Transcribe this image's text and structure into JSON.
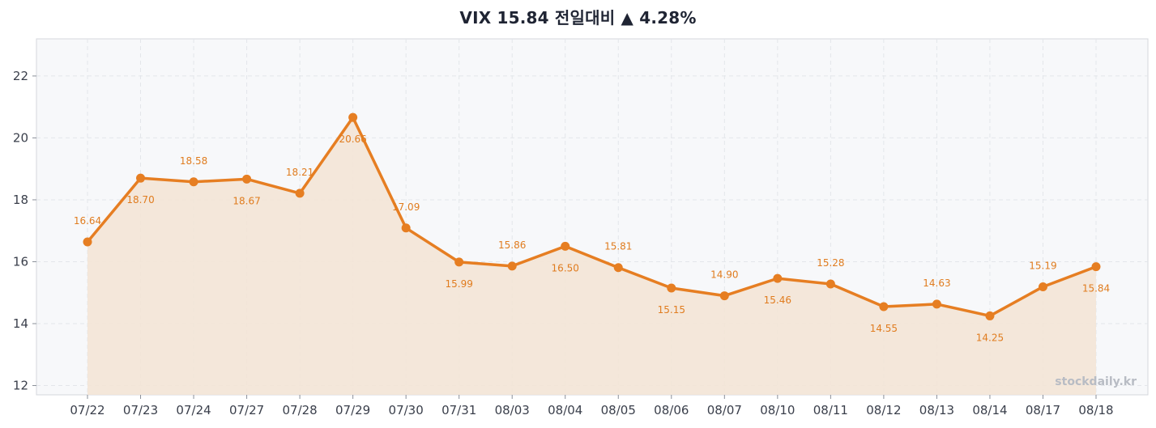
{
  "chart_data": {
    "type": "line",
    "title": "VIX  15.84  전일대비 ▲ 4.28%",
    "xlabel": "",
    "ylabel": "",
    "ylim": [
      11.7,
      23.2
    ],
    "yticks": [
      12,
      14,
      16,
      18,
      20,
      22
    ],
    "grid": true,
    "categories": [
      "07/22",
      "07/23",
      "07/24",
      "07/27",
      "07/28",
      "07/29",
      "07/30",
      "07/31",
      "08/03",
      "08/04",
      "08/05",
      "08/06",
      "08/07",
      "08/10",
      "08/11",
      "08/12",
      "08/13",
      "08/14",
      "08/17",
      "08/18"
    ],
    "series": [
      {
        "values": [
          16.64,
          18.7,
          18.58,
          18.67,
          18.21,
          20.66,
          17.09,
          15.99,
          15.86,
          16.5,
          15.81,
          15.15,
          14.9,
          15.46,
          15.28,
          14.55,
          14.63,
          14.25,
          15.19,
          15.84
        ],
        "color": "#e67e22",
        "fill": "#f3e4d6"
      }
    ],
    "watermark": "stockdaily.kr"
  },
  "colors": {
    "plot_background": "#f7f8fa",
    "grid": "#e3e6ea",
    "axis": "#d4d7dc",
    "line": "#e67e22",
    "label": "#e07c1f"
  }
}
